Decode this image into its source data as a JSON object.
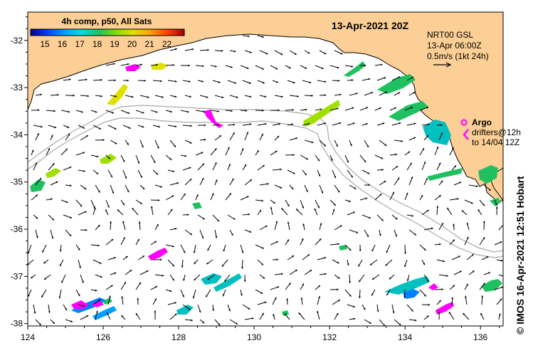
{
  "map": {
    "title": "13-Apr-2021 20Z",
    "colorbar": {
      "title": "4h comp, p50, All Sats",
      "ticks": [
        "15",
        "16",
        "17",
        "18",
        "19",
        "20",
        "21",
        "22"
      ],
      "colors": [
        "#00008c",
        "#0040ff",
        "#00a0ff",
        "#00e0e0",
        "#20c060",
        "#80e000",
        "#e0e000",
        "#ffa000",
        "#ff4000",
        "#a00000"
      ]
    },
    "info_box": {
      "line1": "NRT00 GSL",
      "line2": "13-Apr 06:00Z",
      "line3": "0.5m/s (1kt 24h)"
    },
    "argo_legend": {
      "argo": "Argo",
      "drifters": "drifters@12h",
      "to": "to 14/04 12Z"
    },
    "credit": "© IMOS 16-Apr-2021 12:51 Hobart",
    "x_axis": {
      "range": [
        124,
        136.6
      ],
      "ticks": [
        "124",
        "126",
        "128",
        "130",
        "132",
        "134",
        "136"
      ]
    },
    "y_axis": {
      "range": [
        -38.05,
        -31.4
      ],
      "ticks": [
        "-32",
        "-33",
        "-34",
        "-35",
        "-36",
        "-37",
        "-38"
      ]
    },
    "colors": {
      "land": "#fccf96",
      "coast": "#000000",
      "bathymetry": "#a8a8a8",
      "argo": "#ff00ff",
      "arrows": "#000000"
    }
  }
}
